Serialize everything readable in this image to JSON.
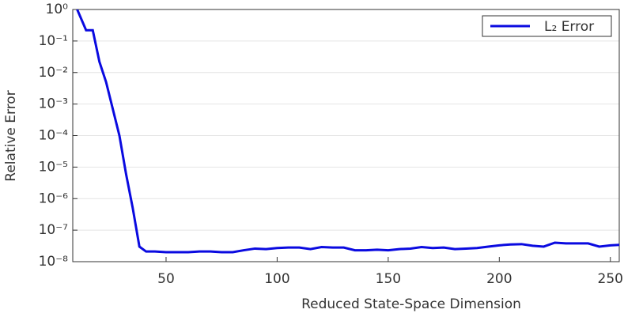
{
  "chart_data": {
    "type": "line",
    "xlabel": "Reduced State-Space Dimension",
    "ylabel": "Relative Error",
    "yscale": "log",
    "grid": true,
    "legend": "upper right",
    "xlim": [
      8,
      254
    ],
    "xticks": [
      50,
      100,
      150,
      200,
      250
    ],
    "ylim": [
      1e-08,
      1
    ],
    "yticks": [
      {
        "value": 1,
        "label": "10⁰"
      },
      {
        "value": 0.1,
        "label": "10⁻¹"
      },
      {
        "value": 0.01,
        "label": "10⁻²"
      },
      {
        "value": 0.001,
        "label": "10⁻³"
      },
      {
        "value": 0.0001,
        "label": "10⁻⁴"
      },
      {
        "value": 1e-05,
        "label": "10⁻⁵"
      },
      {
        "value": 1e-06,
        "label": "10⁻⁶"
      },
      {
        "value": 1e-07,
        "label": "10⁻⁷"
      },
      {
        "value": 1e-08,
        "label": "10⁻⁸"
      }
    ],
    "x": [
      10,
      14,
      17,
      20,
      23,
      29,
      32,
      35,
      38,
      41,
      45,
      50,
      55,
      60,
      65,
      70,
      75,
      80,
      85,
      90,
      95,
      100,
      105,
      110,
      115,
      120,
      125,
      130,
      135,
      140,
      145,
      150,
      155,
      160,
      165,
      170,
      175,
      180,
      185,
      190,
      195,
      200,
      205,
      210,
      215,
      220,
      225,
      230,
      235,
      240,
      245,
      250,
      254
    ],
    "series": [
      {
        "name": "L₂ Error",
        "color": "#0a0ae0",
        "values": [
          1,
          0.22,
          0.22,
          0.022,
          0.005,
          0.0001,
          6e-06,
          5e-07,
          3e-08,
          2.1e-08,
          2.1e-08,
          2e-08,
          2e-08,
          2e-08,
          2.1e-08,
          2.1e-08,
          2e-08,
          2e-08,
          2.3e-08,
          2.6e-08,
          2.5e-08,
          2.7e-08,
          2.8e-08,
          2.8e-08,
          2.5e-08,
          2.9e-08,
          2.8e-08,
          2.8e-08,
          2.3e-08,
          2.3e-08,
          2.4e-08,
          2.3e-08,
          2.5e-08,
          2.6e-08,
          2.9e-08,
          2.7e-08,
          2.8e-08,
          2.5e-08,
          2.6e-08,
          2.7e-08,
          3e-08,
          3.3e-08,
          3.5e-08,
          3.6e-08,
          3.2e-08,
          3e-08,
          4e-08,
          3.8e-08,
          3.8e-08,
          3.8e-08,
          3e-08,
          3.3e-08,
          3.4e-08
        ]
      }
    ]
  }
}
